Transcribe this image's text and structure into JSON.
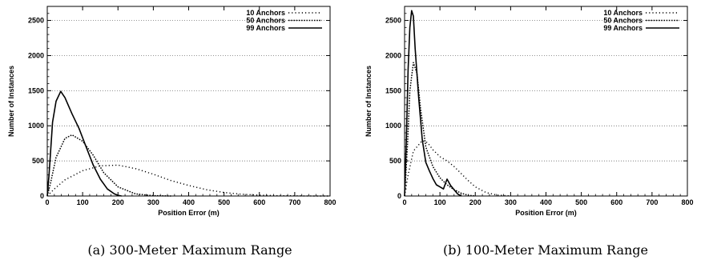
{
  "chart_data": [
    {
      "type": "line",
      "caption": "(a) 300-Meter Maximum Range",
      "xlabel": "Position Error (m)",
      "ylabel": "Number of Instances",
      "xlim": [
        0,
        800
      ],
      "ylim": [
        0,
        2700
      ],
      "xticks": [
        0,
        100,
        200,
        300,
        400,
        500,
        600,
        700,
        800
      ],
      "yticks": [
        0,
        500,
        1000,
        1500,
        2000,
        2500
      ],
      "grid": "horizontal",
      "legend_position": "top-right",
      "series": [
        {
          "name": "10 Anchors",
          "style": "sparse-dotted",
          "x": [
            0,
            20,
            50,
            100,
            150,
            200,
            250,
            300,
            350,
            400,
            450,
            500,
            550,
            600,
            650,
            700,
            750,
            800
          ],
          "y": [
            0,
            100,
            230,
            360,
            430,
            440,
            390,
            310,
            220,
            150,
            90,
            50,
            25,
            12,
            5,
            2,
            0,
            0
          ]
        },
        {
          "name": "50 Anchors",
          "style": "dense-dotted",
          "x": [
            0,
            10,
            25,
            50,
            70,
            100,
            130,
            160,
            200,
            250,
            300,
            350
          ],
          "y": [
            0,
            200,
            550,
            820,
            870,
            780,
            580,
            330,
            130,
            30,
            5,
            0
          ]
        },
        {
          "name": "99 Anchors",
          "style": "solid",
          "x": [
            0,
            5,
            15,
            25,
            38,
            50,
            70,
            90,
            110,
            130,
            150,
            170,
            190,
            200,
            210
          ],
          "y": [
            0,
            300,
            1050,
            1350,
            1490,
            1400,
            1170,
            960,
            700,
            440,
            240,
            100,
            30,
            10,
            0
          ]
        }
      ]
    },
    {
      "type": "line",
      "caption": "(b) 100-Meter Maximum Range",
      "xlabel": "Position Error (m)",
      "ylabel": "Number of Instances",
      "xlim": [
        0,
        800
      ],
      "ylim": [
        0,
        2700
      ],
      "xticks": [
        0,
        100,
        200,
        300,
        400,
        500,
        600,
        700,
        800
      ],
      "yticks": [
        0,
        500,
        1000,
        1500,
        2000,
        2500
      ],
      "grid": "horizontal",
      "legend_position": "top-right",
      "series": [
        {
          "name": "10 Anchors",
          "style": "sparse-dotted",
          "x": [
            0,
            10,
            25,
            50,
            65,
            80,
            100,
            120,
            140,
            160,
            180,
            200,
            230,
            260,
            300
          ],
          "y": [
            0,
            300,
            640,
            790,
            760,
            660,
            560,
            500,
            420,
            320,
            220,
            130,
            50,
            15,
            0
          ]
        },
        {
          "name": "50 Anchors",
          "style": "dense-dotted",
          "x": [
            0,
            8,
            15,
            25,
            35,
            45,
            60,
            80,
            100,
            120,
            140,
            160,
            180,
            200
          ],
          "y": [
            0,
            700,
            1500,
            1900,
            1750,
            1250,
            700,
            420,
            260,
            160,
            90,
            40,
            10,
            0
          ]
        },
        {
          "name": "99 Anchors",
          "style": "solid",
          "x": [
            0,
            5,
            10,
            15,
            20,
            25,
            30,
            40,
            50,
            60,
            70,
            80,
            90,
            100,
            110,
            120,
            130,
            140,
            150,
            160
          ],
          "y": [
            0,
            800,
            1800,
            2400,
            2640,
            2560,
            2100,
            1400,
            800,
            480,
            360,
            250,
            160,
            130,
            100,
            240,
            150,
            90,
            30,
            0
          ]
        }
      ]
    }
  ]
}
